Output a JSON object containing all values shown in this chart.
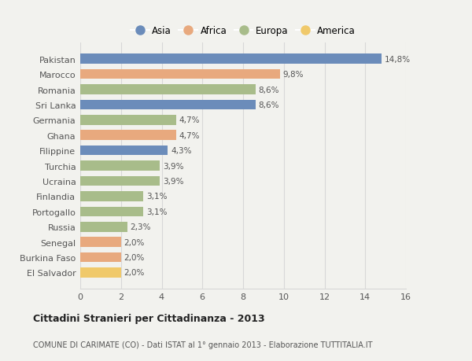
{
  "countries": [
    "Pakistan",
    "Marocco",
    "Romania",
    "Sri Lanka",
    "Germania",
    "Ghana",
    "Filippine",
    "Turchia",
    "Ucraina",
    "Finlandia",
    "Portogallo",
    "Russia",
    "Senegal",
    "Burkina Faso",
    "El Salvador"
  ],
  "values": [
    14.8,
    9.8,
    8.6,
    8.6,
    4.7,
    4.7,
    4.3,
    3.9,
    3.9,
    3.1,
    3.1,
    2.3,
    2.0,
    2.0,
    2.0
  ],
  "labels": [
    "14,8%",
    "9,8%",
    "8,6%",
    "8,6%",
    "4,7%",
    "4,7%",
    "4,3%",
    "3,9%",
    "3,9%",
    "3,1%",
    "3,1%",
    "2,3%",
    "2,0%",
    "2,0%",
    "2,0%"
  ],
  "continents": [
    "Asia",
    "Africa",
    "Europa",
    "Asia",
    "Europa",
    "Africa",
    "Asia",
    "Europa",
    "Europa",
    "Europa",
    "Europa",
    "Europa",
    "Africa",
    "Africa",
    "America"
  ],
  "colors": {
    "Asia": "#6b8cba",
    "Africa": "#e8a97e",
    "Europa": "#a8bc8a",
    "America": "#f0c96a"
  },
  "legend_order": [
    "Asia",
    "Africa",
    "Europa",
    "America"
  ],
  "title": "Cittadini Stranieri per Cittadinanza - 2013",
  "subtitle": "COMUNE DI CARIMATE (CO) - Dati ISTAT al 1° gennaio 2013 - Elaborazione TUTTITALIA.IT",
  "xlim": [
    0,
    16
  ],
  "xticks": [
    0,
    2,
    4,
    6,
    8,
    10,
    12,
    14,
    16
  ],
  "bg_color": "#f2f2ee",
  "plot_bg_color": "#f2f2ee",
  "grid_color": "#d8d8d8",
  "bar_height": 0.65
}
